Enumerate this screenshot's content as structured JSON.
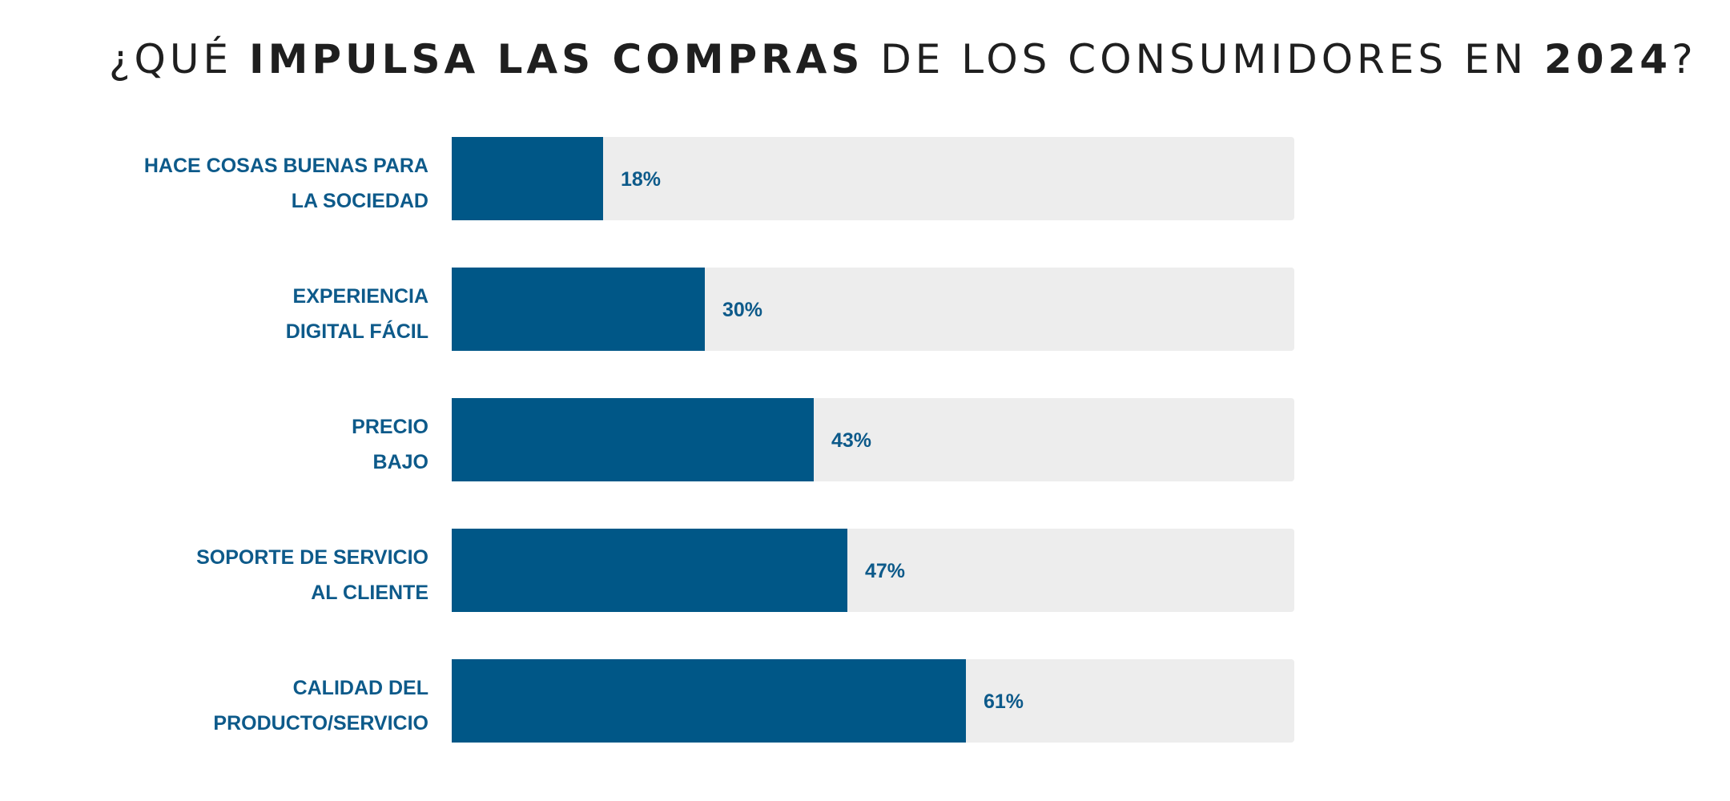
{
  "title": {
    "part1": "¿QUÉ ",
    "part2": "IMPULSA LAS COMPRAS",
    "part3": " DE LOS CONSUMIDORES EN ",
    "part4": "2024",
    "part5": "?"
  },
  "colors": {
    "bar": "#005787",
    "track": "#ededed",
    "label": "#0d5a8a",
    "title": "#1f1f1f"
  },
  "chart_data": {
    "type": "bar",
    "orientation": "horizontal",
    "categories": [
      [
        "HACE COSAS BUENAS PARA",
        "LA SOCIEDAD"
      ],
      [
        "EXPERIENCIA",
        "DIGITAL FÁCIL"
      ],
      [
        "PRECIO",
        "BAJO"
      ],
      [
        "SOPORTE DE SERVICIO",
        "AL CLIENTE"
      ],
      [
        "CALIDAD DEL",
        "PRODUCTO/SERVICIO"
      ]
    ],
    "values": [
      18,
      30,
      43,
      47,
      61
    ],
    "value_labels": [
      "18%",
      "30%",
      "43%",
      "47%",
      "61%"
    ],
    "xlim": [
      0,
      100
    ],
    "grid": false,
    "legend": "none"
  }
}
